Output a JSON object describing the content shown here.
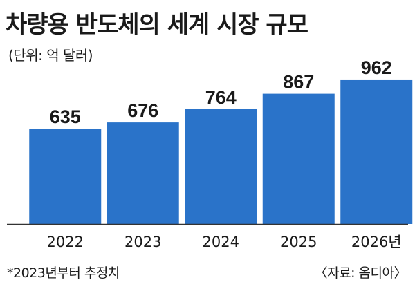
{
  "chart_data": {
    "type": "bar",
    "title": "차량용 반도체의 세계 시장 규모",
    "subtitle": "(단위: 억 달러)",
    "categories": [
      "2022",
      "2023",
      "2024",
      "2025",
      "2026년"
    ],
    "values": [
      635,
      676,
      764,
      867,
      962
    ],
    "ylim": [
      0,
      1000
    ],
    "grid": false,
    "footnote": "*2023년부터 추정치",
    "source": "〈자료: 옴디아〉",
    "colors": {
      "bar": "#2a73c9",
      "baseline": "#333333",
      "text": "#1a1a1a"
    }
  }
}
